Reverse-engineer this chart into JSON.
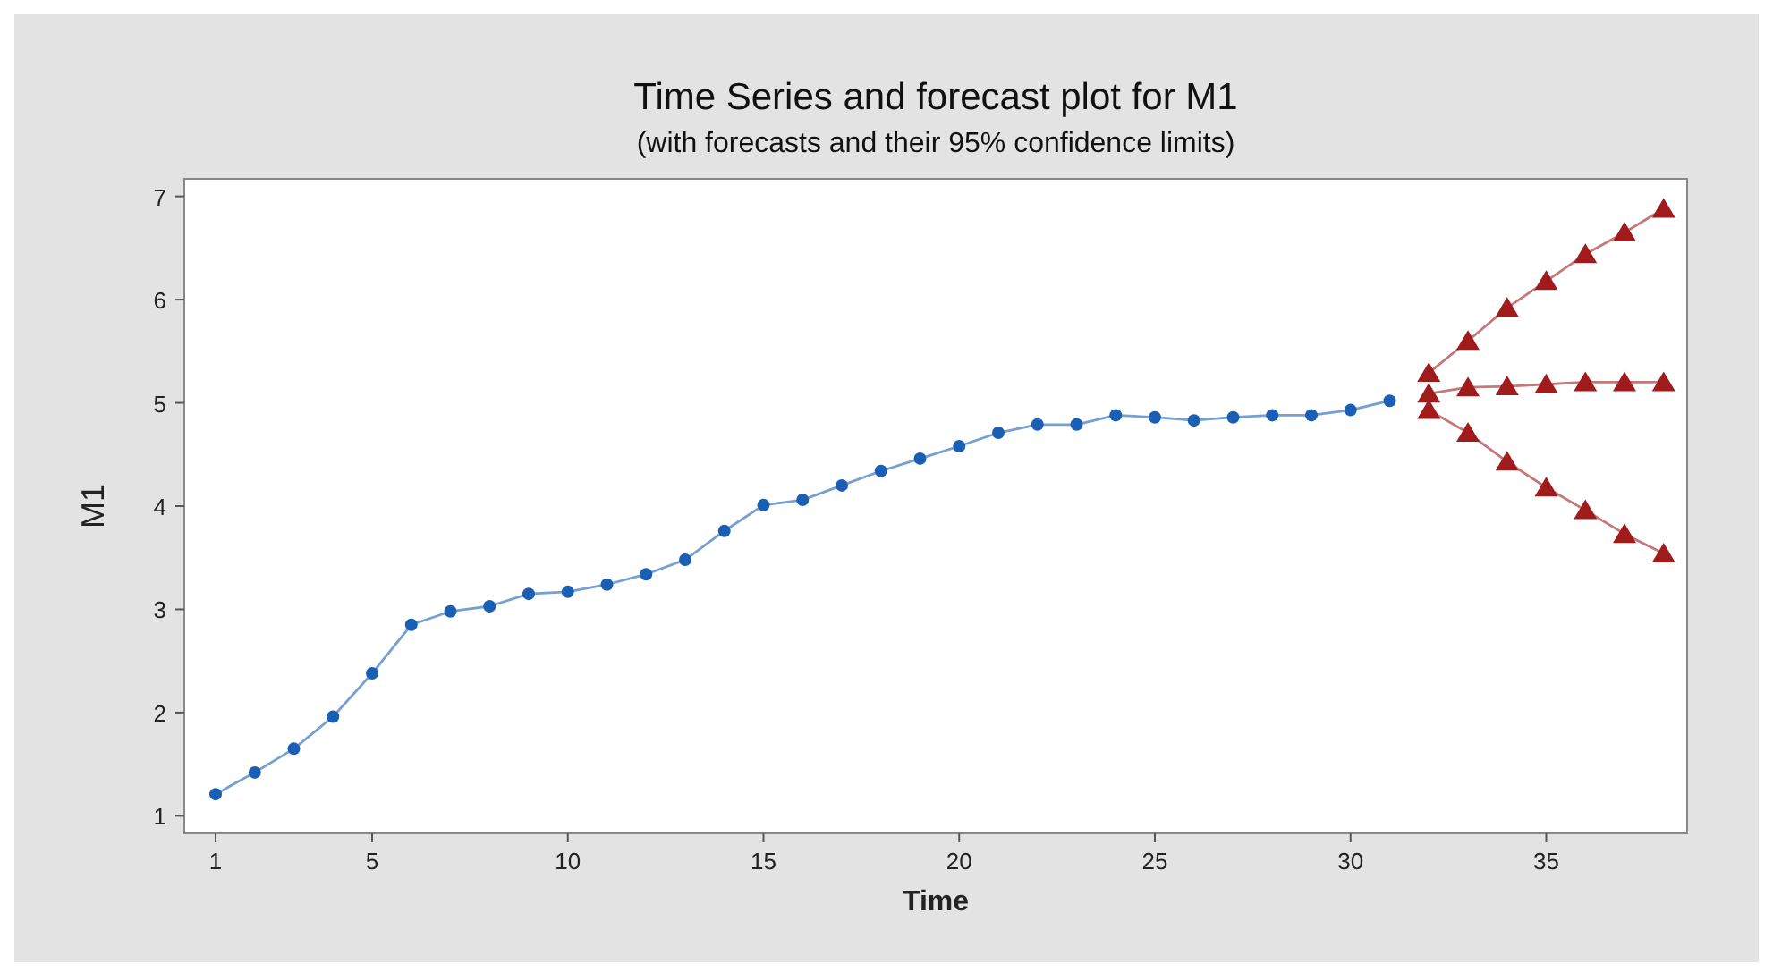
{
  "chart_data": {
    "type": "line",
    "title": "Time Series and forecast plot for M1",
    "subtitle": "(with forecasts and their 95% confidence limits)",
    "xlabel": "Time",
    "ylabel": "M1",
    "xlim": [
      0.2,
      38.6
    ],
    "xticks": [
      1,
      5,
      10,
      15,
      20,
      25,
      30,
      35
    ],
    "ylim": [
      0.83,
      7.17
    ],
    "yticks": [
      1,
      2,
      3,
      4,
      5,
      6,
      7
    ],
    "grid": false,
    "series": [
      {
        "color": "#1a5fb4",
        "marker": "circle",
        "x": [
          1,
          2,
          3,
          4,
          5,
          6,
          7,
          8,
          9,
          10,
          11,
          12,
          13,
          14,
          15,
          16,
          17,
          18,
          19,
          20,
          21,
          22,
          23,
          24,
          25,
          26,
          27,
          28,
          29,
          30,
          31
        ],
        "values": [
          1.21,
          1.42,
          1.65,
          1.96,
          2.38,
          2.85,
          2.98,
          3.03,
          3.15,
          3.17,
          3.24,
          3.34,
          3.48,
          3.76,
          4.01,
          4.06,
          4.2,
          4.34,
          4.46,
          4.58,
          4.71,
          4.79,
          4.79,
          4.88,
          4.86,
          4.83,
          4.86,
          4.88,
          4.88,
          4.93,
          5.02
        ]
      },
      {
        "color": "#a01c1c",
        "marker": "triangle",
        "x": [
          32,
          33,
          34,
          35,
          36,
          37,
          38
        ],
        "values": [
          5.29,
          5.6,
          5.92,
          6.18,
          6.44,
          6.65,
          6.88
        ]
      },
      {
        "color": "#a01c1c",
        "marker": "triangle",
        "x": [
          32,
          33,
          34,
          35,
          36,
          37,
          38
        ],
        "values": [
          5.09,
          5.15,
          5.16,
          5.18,
          5.2,
          5.2,
          5.2
        ]
      },
      {
        "color": "#a01c1c",
        "marker": "triangle",
        "x": [
          32,
          33,
          34,
          35,
          36,
          37,
          38
        ],
        "values": [
          4.93,
          4.71,
          4.43,
          4.18,
          3.96,
          3.73,
          3.54
        ]
      }
    ]
  }
}
